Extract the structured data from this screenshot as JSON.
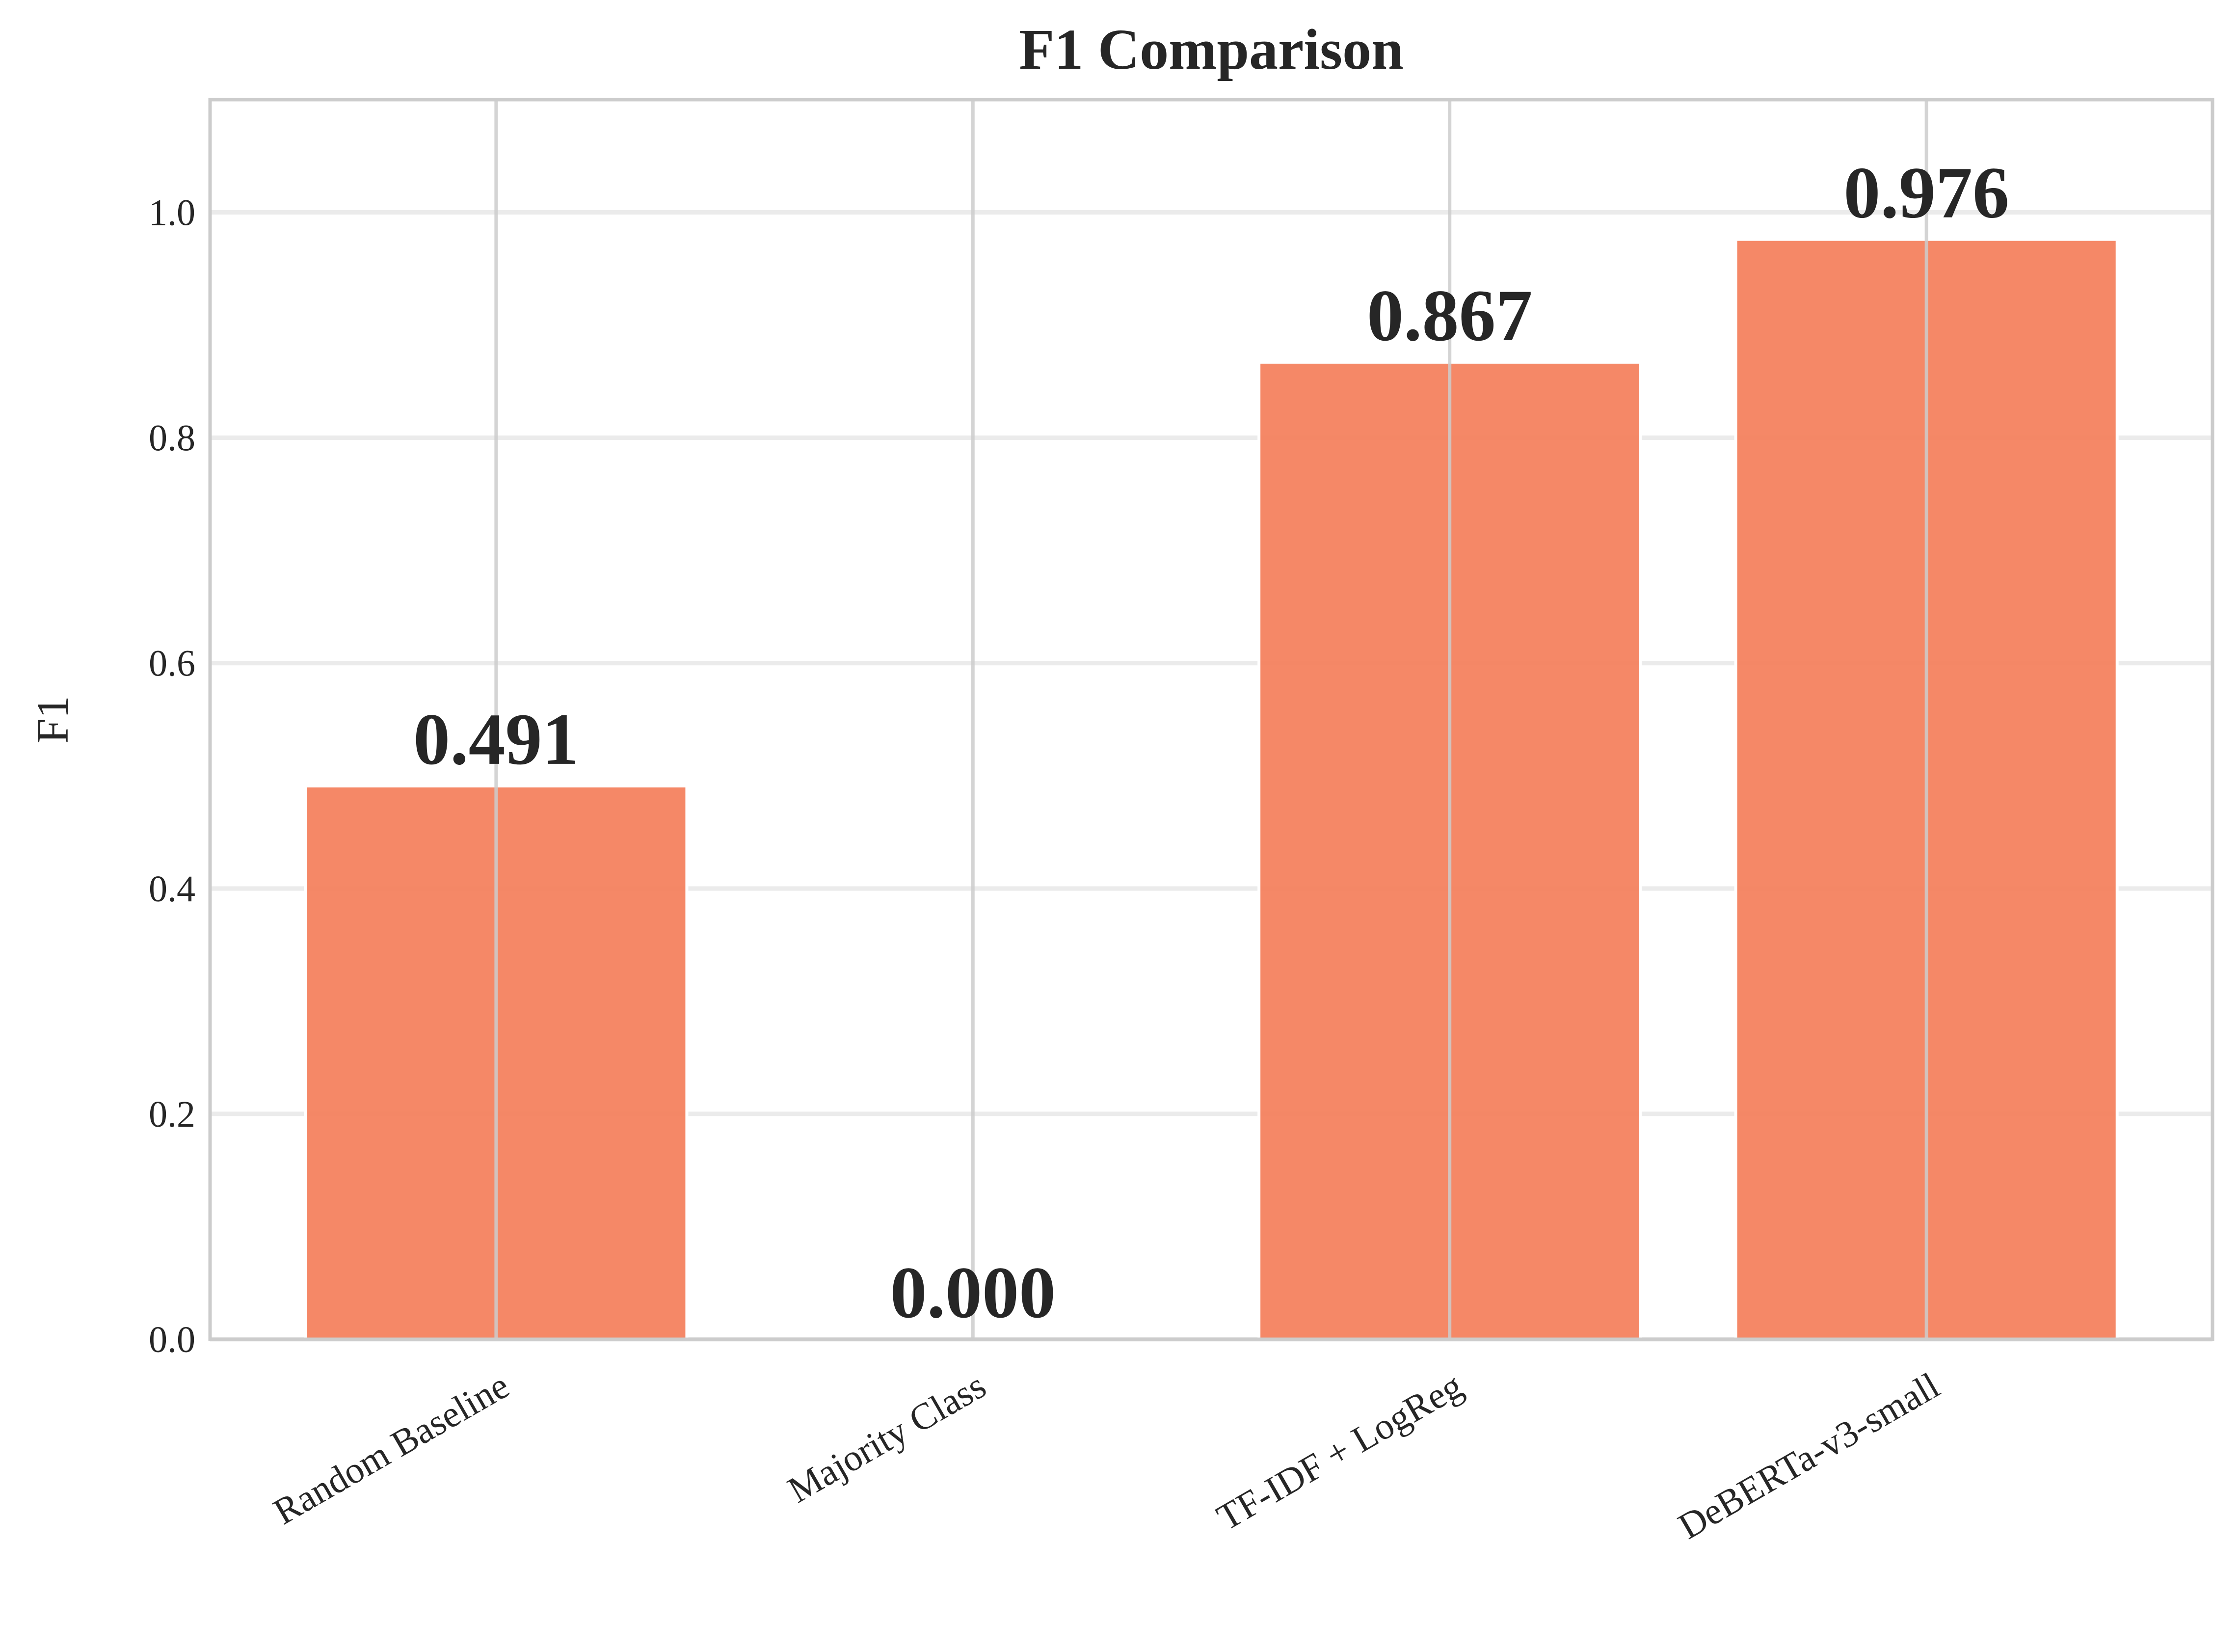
{
  "chart_data": {
    "type": "bar",
    "title": "F1 Comparison",
    "xlabel": "",
    "ylabel": "F1",
    "categories": [
      "Random Baseline",
      "Majority Class",
      "TF-IDF + LogReg",
      "DeBERTa-v3-small"
    ],
    "values": [
      0.491,
      0.0,
      0.867,
      0.976
    ],
    "value_labels": [
      "0.491",
      "0.000",
      "0.867",
      "0.976"
    ],
    "ylim": [
      0,
      1.1
    ],
    "yticks": [
      0.0,
      0.2,
      0.4,
      0.6,
      0.8,
      1.0
    ],
    "ytick_labels": [
      "0.0",
      "0.2",
      "0.4",
      "0.6",
      "0.8",
      "1.0"
    ],
    "grid": true,
    "colors": {
      "bar": "#f4825f",
      "grid": "#ebebeb",
      "vertical_grid": "#cccccc",
      "frame": "#cccccc",
      "text": "#262626"
    }
  }
}
